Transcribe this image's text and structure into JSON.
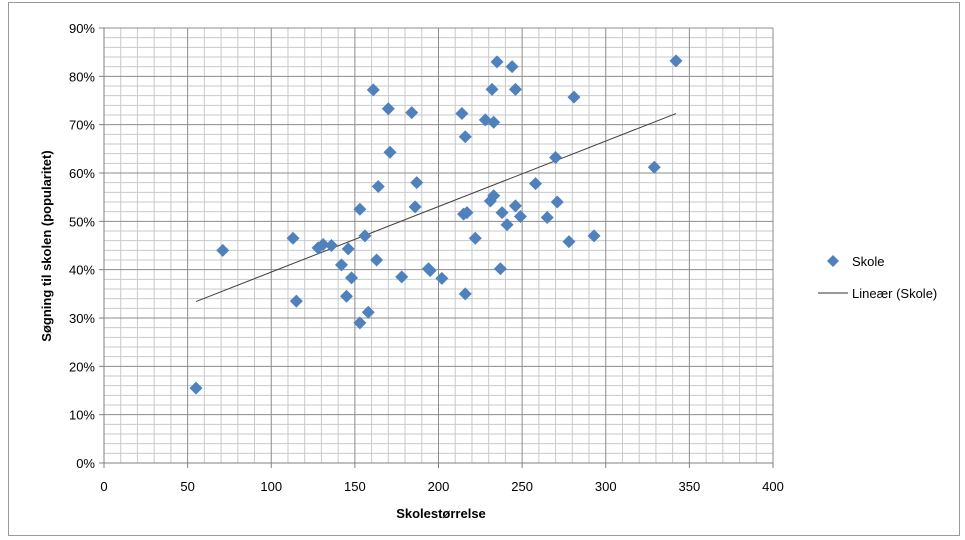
{
  "chart_data": {
    "type": "scatter",
    "title": "",
    "xlabel": "Skolestørrelse",
    "ylabel": "Søgning til skolen (popularitet)",
    "xlim": [
      0,
      400
    ],
    "ylim": [
      0,
      0.9
    ],
    "x_ticks": [
      "0",
      "50",
      "100",
      "150",
      "200",
      "250",
      "300",
      "350",
      "400"
    ],
    "y_ticks": [
      "0%",
      "10%",
      "20%",
      "30%",
      "40%",
      "50%",
      "60%",
      "70%",
      "80%",
      "90%"
    ],
    "grid": true,
    "legend_position": "right",
    "series": [
      {
        "name": "Skole",
        "marker": "diamond",
        "color": "#4f81bd",
        "points": [
          [
            55,
            0.155
          ],
          [
            71,
            0.44
          ],
          [
            113,
            0.465
          ],
          [
            115,
            0.335
          ],
          [
            128,
            0.445
          ],
          [
            131,
            0.452
          ],
          [
            136,
            0.45
          ],
          [
            142,
            0.41
          ],
          [
            145,
            0.345
          ],
          [
            146,
            0.443
          ],
          [
            148,
            0.383
          ],
          [
            153,
            0.525
          ],
          [
            153,
            0.29
          ],
          [
            156,
            0.47
          ],
          [
            158,
            0.312
          ],
          [
            161,
            0.772
          ],
          [
            163,
            0.42
          ],
          [
            164,
            0.572
          ],
          [
            170,
            0.733
          ],
          [
            171,
            0.643
          ],
          [
            178,
            0.385
          ],
          [
            184,
            0.725
          ],
          [
            186,
            0.53
          ],
          [
            187,
            0.58
          ],
          [
            194,
            0.402
          ],
          [
            195,
            0.398
          ],
          [
            202,
            0.382
          ],
          [
            214,
            0.723
          ],
          [
            215,
            0.515
          ],
          [
            216,
            0.675
          ],
          [
            216,
            0.35
          ],
          [
            217,
            0.518
          ],
          [
            222,
            0.465
          ],
          [
            228,
            0.71
          ],
          [
            231,
            0.542
          ],
          [
            232,
            0.773
          ],
          [
            233,
            0.553
          ],
          [
            233,
            0.705
          ],
          [
            235,
            0.83
          ],
          [
            237,
            0.402
          ],
          [
            238,
            0.518
          ],
          [
            241,
            0.493
          ],
          [
            244,
            0.82
          ],
          [
            246,
            0.773
          ],
          [
            246,
            0.532
          ],
          [
            249,
            0.51
          ],
          [
            258,
            0.578
          ],
          [
            265,
            0.508
          ],
          [
            270,
            0.632
          ],
          [
            271,
            0.54
          ],
          [
            278,
            0.458
          ],
          [
            281,
            0.757
          ],
          [
            293,
            0.47
          ],
          [
            329,
            0.612
          ],
          [
            342,
            0.832
          ]
        ]
      }
    ],
    "trendline": {
      "name": "Lineær (Skole)",
      "color": "#000000",
      "x": [
        55,
        342
      ],
      "y": [
        0.334,
        0.723
      ]
    }
  }
}
